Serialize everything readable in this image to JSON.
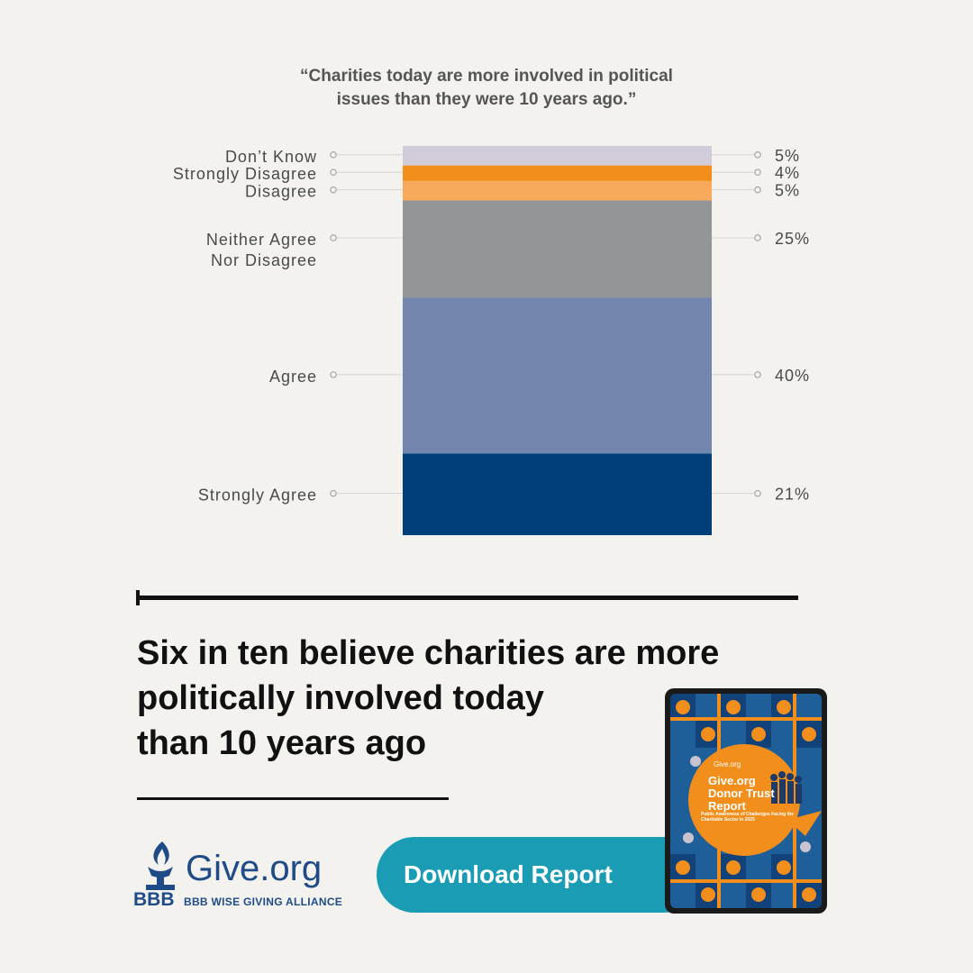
{
  "chart_data": {
    "type": "bar",
    "subtype": "stacked-100",
    "title_lines": [
      "“Charities today are more involved in political",
      "issues than they were 10 years ago.”"
    ],
    "segments": [
      {
        "label_lines": [
          "Strongly Agree"
        ],
        "value": 21,
        "value_label": "21%",
        "color": "#003f7a"
      },
      {
        "label_lines": [
          "Agree"
        ],
        "value": 40,
        "value_label": "40%",
        "color": "#7286b0"
      },
      {
        "label_lines": [
          "Neither Agree",
          "Nor Disagree"
        ],
        "value": 25,
        "value_label": "25%",
        "color": "#949596"
      },
      {
        "label_lines": [
          "Disagree"
        ],
        "value": 5,
        "value_label": "5%",
        "color": "#f9a95b"
      },
      {
        "label_lines": [
          "Strongly Disagree"
        ],
        "value": 4,
        "value_label": "4%",
        "color": "#f28e1c"
      },
      {
        "label_lines": [
          "Don’t Know"
        ],
        "value": 5,
        "value_label": "5%",
        "color": "#d2cbd9"
      }
    ],
    "ylim": [
      0,
      100
    ]
  },
  "headline": {
    "lines": [
      "Six in ten believe charities are more",
      "politically involved today",
      "than 10 years ago"
    ]
  },
  "logo": {
    "text": "Give.org",
    "bbb": "BBB",
    "subtitle": "BBB WISE GIVING ALLIANCE"
  },
  "cta": {
    "label": "Download Report"
  },
  "report_cover": {
    "brand": "Give.org",
    "title_lines": [
      "Give.org",
      "Donor Trust",
      "Report"
    ],
    "subtitle": "Public Awareness of Challenges Facing the Charitable Sector in 2025"
  },
  "colors": {
    "background": "#f3f2ef",
    "brand_blue": "#1f4b86",
    "cta": "#1a9cb4",
    "cover_orange": "#f28e1c"
  }
}
